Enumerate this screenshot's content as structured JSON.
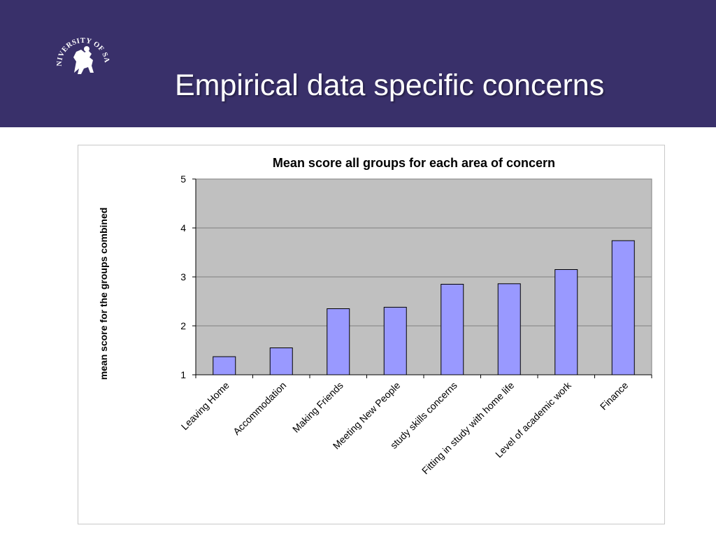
{
  "slide": {
    "title": "Empirical data specific concerns",
    "header_color": "#39306a",
    "logo": {
      "icon": "university-of-salford-crest-icon",
      "text": "THE UNIVERSITY OF SALFORD"
    }
  },
  "chart_data": {
    "type": "bar",
    "title": "Mean score all groups for each area of concern",
    "xlabel": "",
    "ylabel": "mean score for the groups combined",
    "ylim": [
      1,
      5
    ],
    "yticks": [
      "1",
      "2",
      "3",
      "4",
      "5"
    ],
    "grid": true,
    "legend": "none",
    "plot_background": "#c0c0c0",
    "bar_color": "#9999ff",
    "categories": [
      "Leaving Home",
      "Accommodation",
      "Making Friends",
      "Meeting New People",
      "study skills concerns",
      "Fitting in study with home life",
      "Level of academic work",
      "Finance"
    ],
    "values": [
      1.37,
      1.55,
      2.35,
      2.38,
      2.85,
      2.86,
      3.15,
      3.74
    ]
  }
}
